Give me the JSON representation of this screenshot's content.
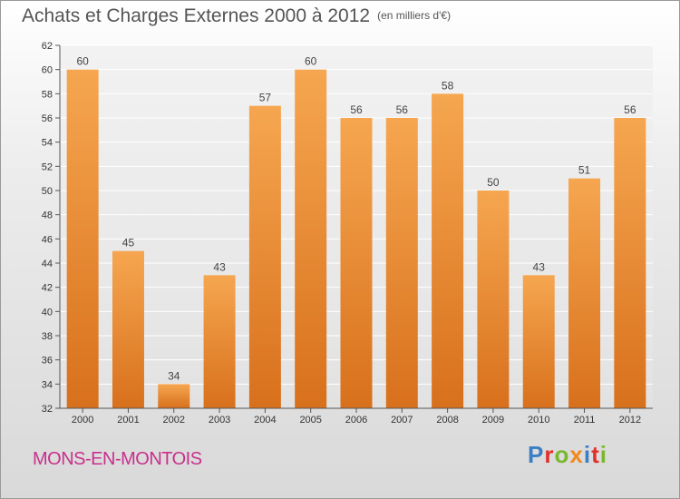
{
  "header": {
    "title": "Achats et Charges Externes 2000 à 2012",
    "unit": "(en milliers d'€)"
  },
  "commune": "MONS-EN-MONTOIS",
  "logo": "Proxiti",
  "colors": {
    "bar_top": "#f6a650",
    "bar_bottom": "#d8701c",
    "commune": "#c8308c"
  },
  "chart_data": {
    "type": "bar",
    "title": "Achats et Charges Externes 2000 à 2012",
    "subtitle": "(en milliers d'€)",
    "categories": [
      "2000",
      "2001",
      "2002",
      "2003",
      "2004",
      "2005",
      "2006",
      "2007",
      "2008",
      "2009",
      "2010",
      "2011",
      "2012"
    ],
    "values": [
      60,
      45,
      34,
      43,
      57,
      60,
      56,
      56,
      58,
      50,
      43,
      51,
      56
    ],
    "ylim": [
      32,
      62
    ],
    "yticks": [
      32,
      34,
      36,
      38,
      40,
      42,
      44,
      46,
      48,
      50,
      52,
      54,
      56,
      58,
      60,
      62
    ],
    "grid": true,
    "data_labels": true
  }
}
